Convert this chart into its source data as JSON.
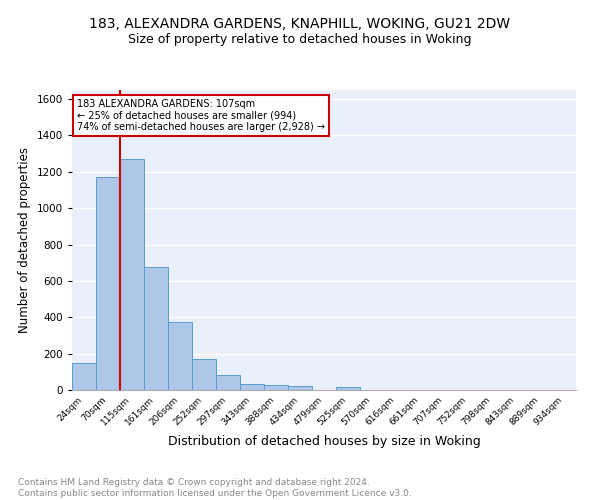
{
  "title1": "183, ALEXANDRA GARDENS, KNAPHILL, WOKING, GU21 2DW",
  "title2": "Size of property relative to detached houses in Woking",
  "xlabel": "Distribution of detached houses by size in Woking",
  "ylabel": "Number of detached properties",
  "footnote": "Contains HM Land Registry data © Crown copyright and database right 2024.\nContains public sector information licensed under the Open Government Licence v3.0.",
  "bar_labels": [
    "24sqm",
    "70sqm",
    "115sqm",
    "161sqm",
    "206sqm",
    "252sqm",
    "297sqm",
    "343sqm",
    "388sqm",
    "434sqm",
    "479sqm",
    "525sqm",
    "570sqm",
    "616sqm",
    "661sqm",
    "707sqm",
    "752sqm",
    "798sqm",
    "843sqm",
    "889sqm",
    "934sqm"
  ],
  "bar_values": [
    148,
    1170,
    1270,
    675,
    375,
    170,
    85,
    35,
    25,
    22,
    0,
    15,
    0,
    0,
    0,
    0,
    0,
    0,
    0,
    0,
    0
  ],
  "bar_color": "#aec6e8",
  "bar_edge_color": "#5b9bd5",
  "vline_x": 1.5,
  "vline_color": "#cc0000",
  "annotation_text": "183 ALEXANDRA GARDENS: 107sqm\n← 25% of detached houses are smaller (994)\n74% of semi-detached houses are larger (2,928) →",
  "annotation_box_color": "#ffffff",
  "annotation_box_edge": "#cc0000",
  "ylim": [
    0,
    1650
  ],
  "yticks": [
    0,
    200,
    400,
    600,
    800,
    1000,
    1200,
    1400,
    1600
  ],
  "background_color": "#eaf0fb",
  "grid_color": "#ffffff",
  "title1_fontsize": 10,
  "title2_fontsize": 9,
  "xlabel_fontsize": 9,
  "ylabel_fontsize": 8.5,
  "footnote_fontsize": 6.5
}
